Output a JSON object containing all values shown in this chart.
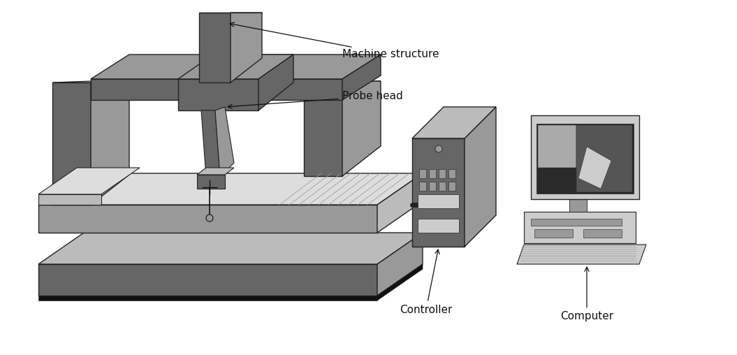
{
  "bg_color": "#ffffff",
  "dark_gray": "#666666",
  "mid_gray": "#999999",
  "light_gray": "#bbbbbb",
  "lighter_gray": "#cccccc",
  "very_light_gray": "#dddddd",
  "black": "#111111",
  "edge_color": "#222222",
  "labels": {
    "machine_structure": "Machine structure",
    "probe_head": "Probe head",
    "controller": "Controller",
    "computer": "Computer"
  },
  "font_size": 11,
  "figsize": [
    10.55,
    5.08
  ],
  "dpi": 100
}
